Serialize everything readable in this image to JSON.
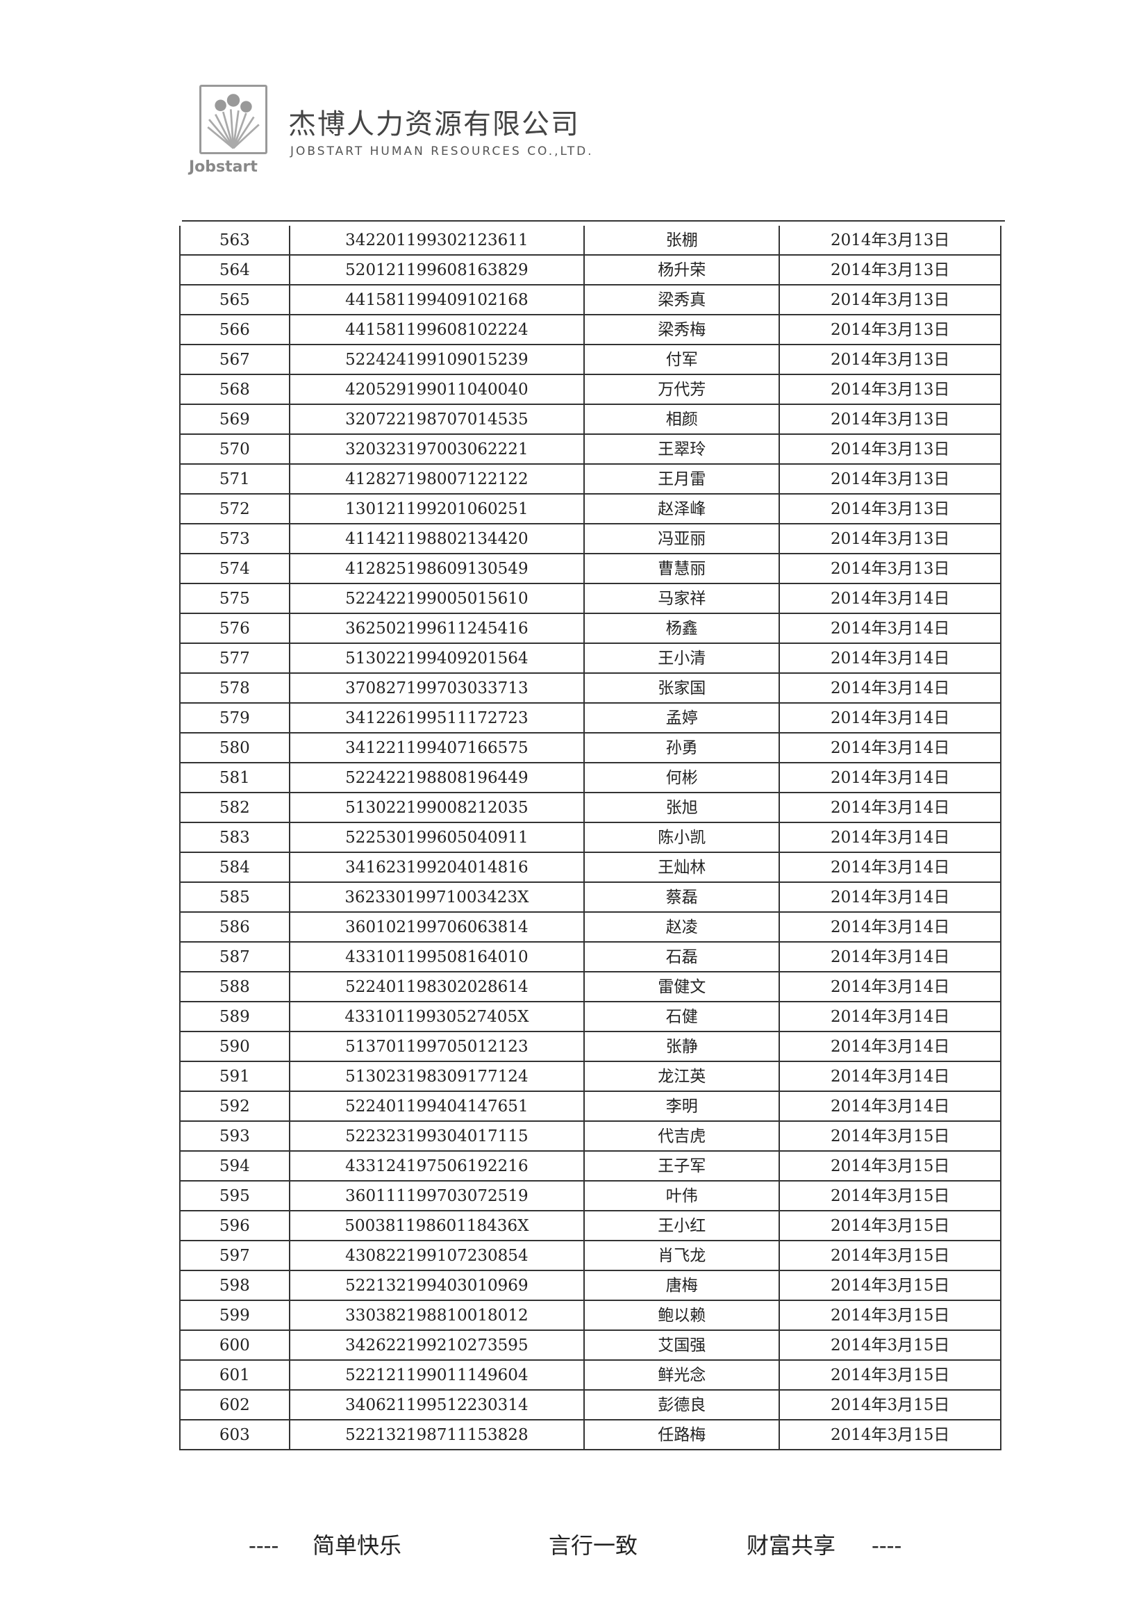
{
  "header": {
    "logo_text": "Jobstart",
    "company_cn": "杰博人力资源有限公司",
    "company_en": "JOBSTART HUMAN RESOURCES CO.,LTD."
  },
  "rows": [
    [
      "563",
      "342201199302123611",
      "张棚",
      "2014年3月13日"
    ],
    [
      "564",
      "520121199608163829",
      "杨升荣",
      "2014年3月13日"
    ],
    [
      "565",
      "441581199409102168",
      "梁秀真",
      "2014年3月13日"
    ],
    [
      "566",
      "441581199608102224",
      "梁秀梅",
      "2014年3月13日"
    ],
    [
      "567",
      "522424199109015239",
      "付军",
      "2014年3月13日"
    ],
    [
      "568",
      "420529199011040040",
      "万代芳",
      "2014年3月13日"
    ],
    [
      "569",
      "320722198707014535",
      "相颜",
      "2014年3月13日"
    ],
    [
      "570",
      "320323197003062221",
      "王翠玲",
      "2014年3月13日"
    ],
    [
      "571",
      "412827198007122122",
      "王月雷",
      "2014年3月13日"
    ],
    [
      "572",
      "130121199201060251",
      "赵泽峰",
      "2014年3月13日"
    ],
    [
      "573",
      "411421198802134420",
      "冯亚丽",
      "2014年3月13日"
    ],
    [
      "574",
      "412825198609130549",
      "曹慧丽",
      "2014年3月13日"
    ],
    [
      "575",
      "522422199005015610",
      "马家祥",
      "2014年3月14日"
    ],
    [
      "576",
      "362502199611245416",
      "杨鑫",
      "2014年3月14日"
    ],
    [
      "577",
      "513022199409201564",
      "王小清",
      "2014年3月14日"
    ],
    [
      "578",
      "370827199703033713",
      "张家国",
      "2014年3月14日"
    ],
    [
      "579",
      "341226199511172723",
      "孟婷",
      "2014年3月14日"
    ],
    [
      "580",
      "341221199407166575",
      "孙勇",
      "2014年3月14日"
    ],
    [
      "581",
      "522422198808196449",
      "何彬",
      "2014年3月14日"
    ],
    [
      "582",
      "513022199008212035",
      "张旭",
      "2014年3月14日"
    ],
    [
      "583",
      "522530199605040911",
      "陈小凯",
      "2014年3月14日"
    ],
    [
      "584",
      "341623199204014816",
      "王灿林",
      "2014年3月14日"
    ],
    [
      "585",
      "36233019971003423X",
      "蔡磊",
      "2014年3月14日"
    ],
    [
      "586",
      "360102199706063814",
      "赵凌",
      "2014年3月14日"
    ],
    [
      "587",
      "433101199508164010",
      "石磊",
      "2014年3月14日"
    ],
    [
      "588",
      "522401198302028614",
      "雷健文",
      "2014年3月14日"
    ],
    [
      "589",
      "43310119930527405X",
      "石健",
      "2014年3月14日"
    ],
    [
      "590",
      "513701199705012123",
      "张静",
      "2014年3月14日"
    ],
    [
      "591",
      "513023198309177124",
      "龙江英",
      "2014年3月14日"
    ],
    [
      "592",
      "522401199404147651",
      "李明",
      "2014年3月14日"
    ],
    [
      "593",
      "522323199304017115",
      "代吉虎",
      "2014年3月15日"
    ],
    [
      "594",
      "433124197506192216",
      "王子军",
      "2014年3月15日"
    ],
    [
      "595",
      "360111199703072519",
      "叶伟",
      "2014年3月15日"
    ],
    [
      "596",
      "50038119860118436X",
      "王小红",
      "2014年3月15日"
    ],
    [
      "597",
      "430822199107230854",
      "肖飞龙",
      "2014年3月15日"
    ],
    [
      "598",
      "522132199403010969",
      "唐梅",
      "2014年3月15日"
    ],
    [
      "599",
      "330382198810018012",
      "鲍以赖",
      "2014年3月15日"
    ],
    [
      "600",
      "342622199210273595",
      "艾国强",
      "2014年3月15日"
    ],
    [
      "601",
      "522121199011149604",
      "鲜光念",
      "2014年3月15日"
    ],
    [
      "602",
      "340621199512230314",
      "彭德良",
      "2014年3月15日"
    ],
    [
      "603",
      "522132198711153828",
      "任路梅",
      "2014年3月15日"
    ]
  ],
  "footer": {
    "dash_left": "----",
    "slogan_1": "简单快乐",
    "slogan_2": "言行一致",
    "slogan_3": "财富共享",
    "dash_right": "----"
  }
}
